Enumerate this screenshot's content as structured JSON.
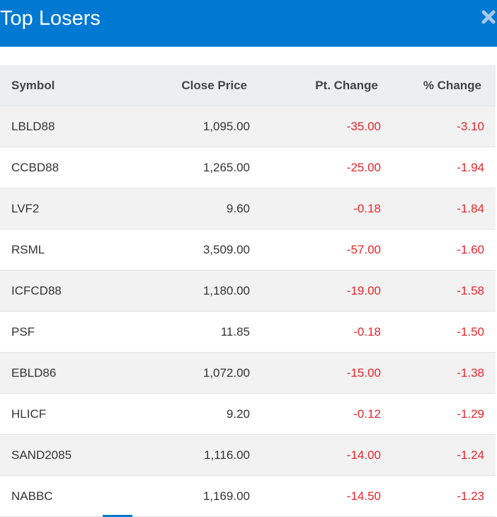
{
  "header": {
    "title": "Top Losers"
  },
  "table": {
    "columns": [
      "Symbol",
      "Close Price",
      "Pt. Change",
      "% Change"
    ],
    "rows": [
      [
        "LBLD88",
        "1,095.00",
        "-35.00",
        "-3.10"
      ],
      [
        "CCBD88",
        "1,265.00",
        "-25.00",
        "-1.94"
      ],
      [
        "LVF2",
        "9.60",
        "-0.18",
        "-1.84"
      ],
      [
        "RSML",
        "3,509.00",
        "-57.00",
        "-1.60"
      ],
      [
        "ICFCD88",
        "1,180.00",
        "-19.00",
        "-1.58"
      ],
      [
        "PSF",
        "11.85",
        "-0.18",
        "-1.50"
      ],
      [
        "EBLD86",
        "1,072.00",
        "-15.00",
        "-1.38"
      ],
      [
        "HLICF",
        "9.20",
        "-0.12",
        "-1.29"
      ],
      [
        "SAND2085",
        "1,116.00",
        "-14.00",
        "-1.24"
      ],
      [
        "NABBC",
        "1,169.00",
        "-14.50",
        "-1.23"
      ]
    ]
  }
}
